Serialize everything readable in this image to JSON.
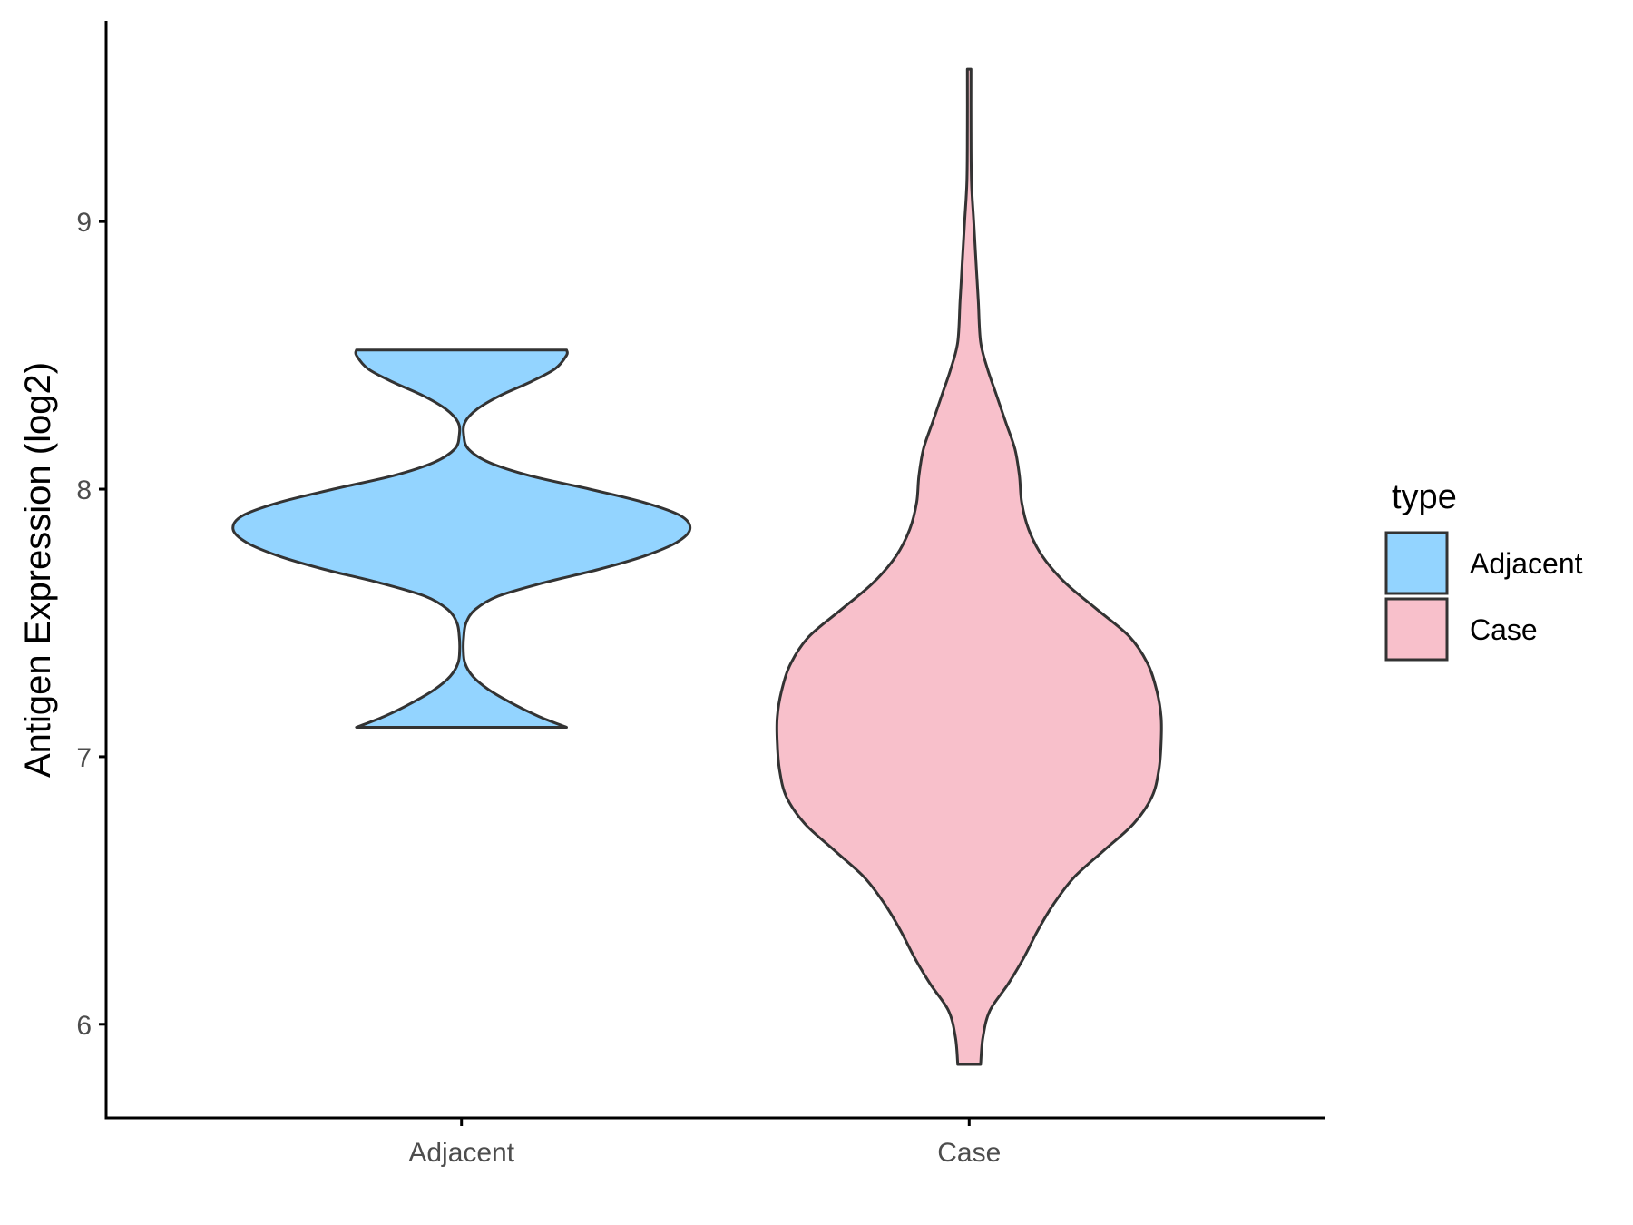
{
  "chart_data": {
    "type": "violin",
    "title": "",
    "xlabel": "",
    "ylabel": "Antigen Expression (log2)",
    "ylim": [
      5.65,
      9.75
    ],
    "yticks": [
      6,
      7,
      8,
      9
    ],
    "categories": [
      "Adjacent",
      "Case"
    ],
    "grid": false,
    "legend": {
      "title": "type",
      "position": "right",
      "entries": [
        "Adjacent",
        "Case"
      ]
    },
    "series": [
      {
        "name": "Adjacent",
        "color": "#93d4ff",
        "min": 7.11,
        "max": 8.52,
        "density_profile": [
          [
            7.11,
            0.46
          ],
          [
            7.15,
            0.34
          ],
          [
            7.2,
            0.22
          ],
          [
            7.25,
            0.12
          ],
          [
            7.3,
            0.05
          ],
          [
            7.35,
            0.015
          ],
          [
            7.4,
            0.008
          ],
          [
            7.45,
            0.01
          ],
          [
            7.5,
            0.02
          ],
          [
            7.55,
            0.06
          ],
          [
            7.6,
            0.16
          ],
          [
            7.65,
            0.36
          ],
          [
            7.7,
            0.6
          ],
          [
            7.75,
            0.8
          ],
          [
            7.8,
            0.94
          ],
          [
            7.85,
            1.0
          ],
          [
            7.9,
            0.96
          ],
          [
            7.95,
            0.8
          ],
          [
            8.0,
            0.56
          ],
          [
            8.05,
            0.3
          ],
          [
            8.1,
            0.12
          ],
          [
            8.15,
            0.03
          ],
          [
            8.2,
            0.01
          ],
          [
            8.25,
            0.015
          ],
          [
            8.3,
            0.07
          ],
          [
            8.35,
            0.17
          ],
          [
            8.4,
            0.3
          ],
          [
            8.45,
            0.41
          ],
          [
            8.5,
            0.46
          ],
          [
            8.52,
            0.46
          ]
        ]
      },
      {
        "name": "Case",
        "color": "#f8c0cb",
        "min": 5.85,
        "max": 9.57,
        "density_profile": [
          [
            5.85,
            0.05
          ],
          [
            5.95,
            0.06
          ],
          [
            6.05,
            0.09
          ],
          [
            6.15,
            0.17
          ],
          [
            6.25,
            0.24
          ],
          [
            6.35,
            0.3
          ],
          [
            6.45,
            0.37
          ],
          [
            6.55,
            0.46
          ],
          [
            6.65,
            0.59
          ],
          [
            6.75,
            0.72
          ],
          [
            6.85,
            0.8
          ],
          [
            6.95,
            0.83
          ],
          [
            7.05,
            0.84
          ],
          [
            7.15,
            0.84
          ],
          [
            7.25,
            0.82
          ],
          [
            7.35,
            0.78
          ],
          [
            7.45,
            0.7
          ],
          [
            7.55,
            0.56
          ],
          [
            7.65,
            0.42
          ],
          [
            7.75,
            0.32
          ],
          [
            7.85,
            0.26
          ],
          [
            7.95,
            0.23
          ],
          [
            8.05,
            0.22
          ],
          [
            8.15,
            0.2
          ],
          [
            8.25,
            0.16
          ],
          [
            8.35,
            0.12
          ],
          [
            8.45,
            0.08
          ],
          [
            8.55,
            0.05
          ],
          [
            8.7,
            0.04
          ],
          [
            8.85,
            0.03
          ],
          [
            9.0,
            0.02
          ],
          [
            9.15,
            0.01
          ],
          [
            9.35,
            0.008
          ],
          [
            9.57,
            0.008
          ]
        ]
      }
    ]
  }
}
